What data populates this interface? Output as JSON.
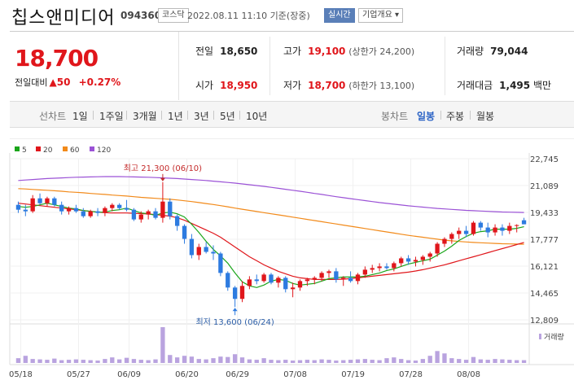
{
  "header": {
    "stock_name": "칩스앤미디어",
    "stock_code": "094360",
    "market": "코스닥",
    "datetime": "2022.08.11 11:10 기준(장중)",
    "realtime_button": "실시간",
    "company_info_button": "기업개요 ▾"
  },
  "price": {
    "current": "18,700",
    "change_label": "전일대비",
    "change_arrow": "▲",
    "change_value": "50",
    "change_percent": "+0.27%"
  },
  "info": {
    "prev_label": "전일",
    "prev_value": "18,650",
    "high_label": "고가",
    "high_value": "19,100",
    "upper_limit": "(상한가 24,200)",
    "volume_label": "거래량",
    "volume_value": "79,044",
    "open_label": "시가",
    "open_value": "18,950",
    "low_label": "저가",
    "low_value": "18,700",
    "lower_limit": "(하한가 13,100)",
    "amount_label": "거래대금",
    "amount_value": "1,495",
    "amount_unit": "백만"
  },
  "tabs": {
    "line_chart": "선차트",
    "periods": [
      "1일",
      "1주일",
      "3개월",
      "1년",
      "3년",
      "5년",
      "10년"
    ],
    "active_period_index": 2,
    "candle_chart": "봉차트",
    "candle_periods": [
      "일봉",
      "주봉",
      "월봉"
    ],
    "active_candle_index": 0
  },
  "chart_data": {
    "type": "candlestick",
    "legend": [
      {
        "name": "5",
        "color": "#1aa51a"
      },
      {
        "name": "20",
        "color": "#e0161b"
      },
      {
        "name": "60",
        "color": "#f28a1a"
      },
      {
        "name": "120",
        "color": "#9b52d6"
      }
    ],
    "y_ticks": [
      "22,745",
      "21,089",
      "19,433",
      "17,777",
      "16,121",
      "14,465",
      "12,809"
    ],
    "ylim": [
      12809,
      22745
    ],
    "x_ticks": [
      "05/18",
      "05/27",
      "06/09",
      "06/20",
      "06/29",
      "07/08",
      "07/19",
      "07/28",
      "08/08"
    ],
    "annotation_high": "최고 21,300 (06/10)",
    "annotation_low": "최저 13,600 (06/24)",
    "volume_label": "거래량",
    "up_color": "#e0161b",
    "down_color": "#2d7be0",
    "volume_color": "#b9a3df",
    "candles": [
      [
        19900,
        20100,
        19400,
        19600
      ],
      [
        19600,
        19900,
        19200,
        19500
      ],
      [
        19500,
        20500,
        19400,
        20300
      ],
      [
        20300,
        20600,
        19900,
        20000
      ],
      [
        20000,
        20400,
        19800,
        20300
      ],
      [
        20300,
        20400,
        19800,
        19900
      ],
      [
        19900,
        20100,
        19300,
        19500
      ],
      [
        19500,
        19800,
        19300,
        19700
      ],
      [
        19700,
        19900,
        19400,
        19500
      ],
      [
        19500,
        19700,
        19100,
        19200
      ],
      [
        19200,
        19600,
        19100,
        19500
      ],
      [
        19500,
        19700,
        19200,
        19400
      ],
      [
        19400,
        19800,
        19200,
        19700
      ],
      [
        19700,
        20000,
        19500,
        19900
      ],
      [
        19900,
        20000,
        19600,
        19700
      ],
      [
        19700,
        20200,
        19500,
        19600
      ],
      [
        19600,
        19700,
        18900,
        19000
      ],
      [
        19000,
        19500,
        18800,
        19300
      ],
      [
        19300,
        19600,
        19000,
        19500
      ],
      [
        19500,
        19700,
        19000,
        19100
      ],
      [
        19100,
        21300,
        18800,
        20100
      ],
      [
        20100,
        20300,
        19000,
        19200
      ],
      [
        19200,
        19300,
        18300,
        18600
      ],
      [
        18600,
        18700,
        17500,
        17800
      ],
      [
        17800,
        18100,
        16600,
        16800
      ],
      [
        16800,
        17500,
        16500,
        17300
      ],
      [
        17300,
        17600,
        16900,
        17000
      ],
      [
        17000,
        17400,
        16500,
        16900
      ],
      [
        16900,
        17000,
        15500,
        15700
      ],
      [
        15700,
        15800,
        14600,
        14800
      ],
      [
        14800,
        14900,
        13600,
        14100
      ],
      [
        14100,
        15200,
        13900,
        14900
      ],
      [
        14900,
        15500,
        14700,
        15300
      ],
      [
        15300,
        15600,
        15000,
        15200
      ],
      [
        15200,
        15700,
        15100,
        15600
      ],
      [
        15600,
        15700,
        15000,
        15100
      ],
      [
        15100,
        15500,
        14800,
        15400
      ],
      [
        15400,
        15500,
        14500,
        14700
      ],
      [
        14700,
        15100,
        14200,
        14800
      ],
      [
        14800,
        15300,
        14600,
        15200
      ],
      [
        15200,
        15400,
        14900,
        15300
      ],
      [
        15300,
        15500,
        15000,
        15400
      ],
      [
        15400,
        15800,
        15200,
        15700
      ],
      [
        15700,
        15900,
        15400,
        15800
      ],
      [
        15800,
        16000,
        15100,
        15300
      ],
      [
        15300,
        15500,
        14900,
        15400
      ],
      [
        15400,
        15800,
        15100,
        15200
      ],
      [
        15200,
        15700,
        15000,
        15600
      ],
      [
        15600,
        16100,
        15400,
        15900
      ],
      [
        15900,
        16200,
        15700,
        16000
      ],
      [
        16000,
        16300,
        15800,
        16100
      ],
      [
        16100,
        16300,
        15900,
        16000
      ],
      [
        16000,
        16400,
        15800,
        16300
      ],
      [
        16300,
        16700,
        16100,
        16600
      ],
      [
        16600,
        16800,
        16200,
        16400
      ],
      [
        16400,
        16700,
        16100,
        16500
      ],
      [
        16500,
        16800,
        16200,
        16700
      ],
      [
        16700,
        17000,
        16400,
        16900
      ],
      [
        16900,
        17600,
        16700,
        17500
      ],
      [
        17500,
        17900,
        17300,
        17800
      ],
      [
        17800,
        18200,
        17500,
        18100
      ],
      [
        18100,
        18500,
        17800,
        18300
      ],
      [
        18300,
        18600,
        17900,
        18100
      ],
      [
        18100,
        18900,
        18000,
        18800
      ],
      [
        18800,
        18900,
        18300,
        18500
      ],
      [
        18500,
        18800,
        17900,
        18200
      ],
      [
        18200,
        18700,
        18000,
        18500
      ],
      [
        18500,
        18700,
        18000,
        18300
      ],
      [
        18300,
        18800,
        18100,
        18600
      ],
      [
        18600,
        18700,
        18200,
        18650
      ],
      [
        18950,
        19100,
        18700,
        18700
      ]
    ],
    "volumes": [
      12,
      18,
      10,
      9,
      8,
      11,
      7,
      8,
      9,
      8,
      7,
      6,
      10,
      14,
      9,
      13,
      10,
      8,
      7,
      9,
      90,
      20,
      14,
      18,
      16,
      10,
      9,
      12,
      16,
      15,
      22,
      14,
      9,
      8,
      12,
      8,
      7,
      8,
      6,
      7,
      8,
      7,
      9,
      8,
      6,
      7,
      8,
      9,
      10,
      8,
      7,
      12,
      14,
      10,
      7,
      6,
      10,
      18,
      30,
      24,
      12,
      10,
      8,
      15,
      9,
      8,
      10,
      9,
      8,
      7,
      7
    ],
    "ma5": [
      19800,
      19750,
      19800,
      19900,
      20000,
      19900,
      19800,
      19700,
      19650,
      19550,
      19500,
      19450,
      19450,
      19550,
      19600,
      19700,
      19550,
      19400,
      19350,
      19250,
      19400,
      19450,
      19350,
      19150,
      18700,
      18200,
      17650,
      17150,
      16750,
      16300,
      15700,
      15150,
      14900,
      14800,
      14950,
      15200,
      15300,
      15250,
      15050,
      14950,
      15000,
      15050,
      15200,
      15350,
      15400,
      15450,
      15450,
      15450,
      15500,
      15600,
      15700,
      15850,
      15950,
      16100,
      16250,
      16350,
      16450,
      16550,
      16800,
      17050,
      17350,
      17700,
      17950,
      18150,
      18250,
      18300,
      18400,
      18400,
      18400,
      18450,
      18550
    ],
    "ma20": [
      20000,
      19950,
      19900,
      19850,
      19800,
      19750,
      19700,
      19650,
      19600,
      19550,
      19500,
      19450,
      19420,
      19400,
      19400,
      19400,
      19380,
      19360,
      19340,
      19300,
      19250,
      19200,
      19100,
      18950,
      18750,
      18550,
      18350,
      18150,
      17900,
      17600,
      17300,
      17000,
      16700,
      16450,
      16200,
      16000,
      15800,
      15650,
      15500,
      15400,
      15350,
      15300,
      15300,
      15300,
      15300,
      15320,
      15350,
      15400,
      15450,
      15500,
      15550,
      15600,
      15650,
      15700,
      15750,
      15820,
      15900,
      16000,
      16100,
      16200,
      16320,
      16450,
      16580,
      16700,
      16820,
      16950,
      17080,
      17200,
      17320,
      17450,
      17580
    ],
    "ma60": [
      20900,
      20880,
      20850,
      20820,
      20800,
      20770,
      20740,
      20700,
      20670,
      20640,
      20600,
      20570,
      20540,
      20500,
      20470,
      20440,
      20400,
      20360,
      20330,
      20300,
      20270,
      20240,
      20200,
      20150,
      20100,
      20040,
      19980,
      19920,
      19850,
      19780,
      19700,
      19630,
      19560,
      19490,
      19420,
      19350,
      19280,
      19210,
      19140,
      19070,
      19000,
      18930,
      18860,
      18790,
      18720,
      18650,
      18580,
      18510,
      18440,
      18370,
      18300,
      18230,
      18160,
      18090,
      18020,
      17960,
      17900,
      17840,
      17780,
      17720,
      17680,
      17640,
      17610,
      17580,
      17560,
      17540,
      17520,
      17500,
      17490,
      17480,
      17470
    ],
    "ma120": [
      21400,
      21430,
      21460,
      21490,
      21520,
      21540,
      21560,
      21580,
      21600,
      21610,
      21620,
      21630,
      21640,
      21640,
      21640,
      21630,
      21620,
      21610,
      21600,
      21580,
      21560,
      21540,
      21520,
      21490,
      21460,
      21430,
      21400,
      21360,
      21320,
      21280,
      21240,
      21190,
      21140,
      21090,
      21040,
      20980,
      20920,
      20860,
      20800,
      20740,
      20670,
      20600,
      20540,
      20470,
      20400,
      20340,
      20280,
      20220,
      20160,
      20100,
      20040,
      19990,
      19940,
      19890,
      19840,
      19800,
      19760,
      19720,
      19680,
      19650,
      19620,
      19590,
      19560,
      19540,
      19520,
      19500,
      19480,
      19460,
      19450,
      19440,
      19430
    ]
  }
}
